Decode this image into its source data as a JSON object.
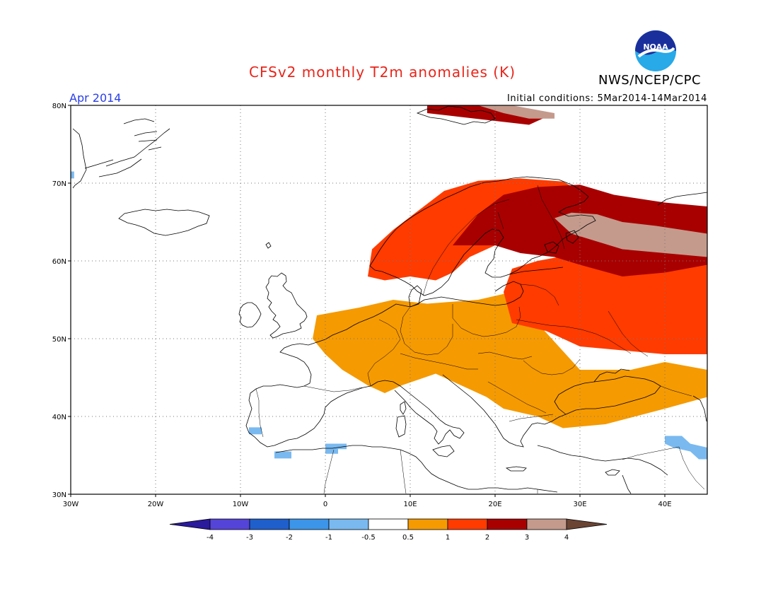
{
  "header": {
    "title": "CFSv2 monthly T2m anomalies (K)",
    "organization": "NWS/NCEP/CPC",
    "logo_text": "NOAA",
    "forecast_month": "Apr 2014",
    "initial_conditions": "Initial conditions: 5Mar2014-14Mar2014"
  },
  "colors": {
    "title": "#e8251b",
    "month": "#2a3ee8",
    "lt_neg4": "#2a1a9c",
    "neg4_neg3": "#5544d8",
    "neg3_neg2": "#1f5fcc",
    "neg2_neg1": "#3c95e8",
    "neg1_neg05": "#79b9f0",
    "neutral": "#ffffff",
    "p05_p1": "#f59a00",
    "p1_p2": "#ff3b00",
    "p2_p3": "#a80000",
    "p3_p4": "#c49a8c",
    "gt_p4": "#6b4434"
  },
  "chart_data": {
    "type": "heatmap",
    "title": "CFSv2 monthly T2m anomalies (K)",
    "subtitle_left": "Apr 2014",
    "subtitle_right": "Initial conditions: 5Mar2014-14Mar2014",
    "units": "K",
    "x_range": [
      -30,
      45
    ],
    "y_range": [
      30,
      80
    ],
    "grid": true,
    "xticks": [
      {
        "lon": -30,
        "label": "30W"
      },
      {
        "lon": -20,
        "label": "20W"
      },
      {
        "lon": -10,
        "label": "10W"
      },
      {
        "lon": 0,
        "label": "0"
      },
      {
        "lon": 10,
        "label": "10E"
      },
      {
        "lon": 20,
        "label": "20E"
      },
      {
        "lon": 30,
        "label": "30E"
      },
      {
        "lon": 40,
        "label": "40E"
      }
    ],
    "yticks": [
      {
        "lat": 30,
        "label": "30N"
      },
      {
        "lat": 40,
        "label": "40N"
      },
      {
        "lat": 50,
        "label": "50N"
      },
      {
        "lat": 60,
        "label": "60N"
      },
      {
        "lat": 70,
        "label": "70N"
      },
      {
        "lat": 80,
        "label": "80N"
      }
    ],
    "colorbar": {
      "labels": [
        "-4",
        "-3",
        "-2",
        "-1",
        "-0.5",
        "0.5",
        "1",
        "2",
        "3",
        "4"
      ],
      "bins": [
        "lt_neg4",
        "neg4_neg3",
        "neg3_neg2",
        "neg2_neg1",
        "neg1_neg05",
        "neutral",
        "p05_p1",
        "p1_p2",
        "p2_p3",
        "p3_p4",
        "gt_p4"
      ]
    },
    "regions": [
      {
        "bin": "p05_p1",
        "area": "Western & Central Europe",
        "poly": [
          [
            -1,
            53
          ],
          [
            4,
            54
          ],
          [
            8,
            55
          ],
          [
            12,
            54.5
          ],
          [
            18,
            55
          ],
          [
            22,
            56
          ],
          [
            25,
            52
          ],
          [
            30,
            46
          ],
          [
            36,
            46
          ],
          [
            40,
            47
          ],
          [
            45,
            46
          ],
          [
            45,
            42.5
          ],
          [
            40,
            41
          ],
          [
            33,
            39
          ],
          [
            28,
            38.5
          ],
          [
            25,
            40
          ],
          [
            21,
            41
          ],
          [
            19,
            42.5
          ],
          [
            16,
            44
          ],
          [
            13,
            45.5
          ],
          [
            9,
            44
          ],
          [
            7,
            43
          ],
          [
            5,
            44
          ],
          [
            2,
            46
          ],
          [
            0,
            48
          ],
          [
            -1.5,
            50
          ],
          [
            -1,
            53
          ]
        ]
      },
      {
        "bin": "p1_p2",
        "area": "Scandinavia",
        "poly": [
          [
            5,
            58
          ],
          [
            5.5,
            61.5
          ],
          [
            8,
            64
          ],
          [
            11,
            66.5
          ],
          [
            14,
            69
          ],
          [
            18,
            70.3
          ],
          [
            23,
            70.6
          ],
          [
            28,
            70.2
          ],
          [
            30,
            69
          ],
          [
            27,
            66
          ],
          [
            23,
            63
          ],
          [
            20,
            62
          ],
          [
            17,
            60.5
          ],
          [
            15,
            58.5
          ],
          [
            13,
            57.5
          ],
          [
            10,
            58
          ],
          [
            7,
            57.5
          ],
          [
            5,
            58
          ]
        ]
      },
      {
        "bin": "p1_p2",
        "area": "Eastern Europe / Western Russia",
        "poly": [
          [
            21,
            56
          ],
          [
            22,
            59
          ],
          [
            25,
            60
          ],
          [
            30,
            61
          ],
          [
            35,
            62
          ],
          [
            40,
            63
          ],
          [
            45,
            63.5
          ],
          [
            45,
            48
          ],
          [
            40,
            48
          ],
          [
            35,
            48.5
          ],
          [
            30,
            49
          ],
          [
            26,
            51
          ],
          [
            22,
            52
          ],
          [
            21,
            56
          ]
        ]
      },
      {
        "bin": "p2_p3",
        "area": "Northern Fennoscandia & NW Russia",
        "poly": [
          [
            15,
            62
          ],
          [
            18,
            66
          ],
          [
            21,
            68.5
          ],
          [
            25,
            69.5
          ],
          [
            30,
            69.8
          ],
          [
            34,
            68.5
          ],
          [
            40,
            67.5
          ],
          [
            45,
            67
          ],
          [
            45,
            59.5
          ],
          [
            40,
            58.5
          ],
          [
            35,
            58
          ],
          [
            30,
            59.5
          ],
          [
            27,
            60.5
          ],
          [
            23,
            61
          ],
          [
            20,
            62
          ],
          [
            15,
            62
          ]
        ]
      },
      {
        "bin": "p3_p4",
        "area": "Kola / White Sea",
        "poly": [
          [
            27,
            65.5
          ],
          [
            29,
            66.2
          ],
          [
            32,
            66
          ],
          [
            35,
            65
          ],
          [
            39,
            64.5
          ],
          [
            45,
            63.5
          ],
          [
            45,
            60.5
          ],
          [
            40,
            61
          ],
          [
            35,
            61.5
          ],
          [
            32,
            62.5
          ],
          [
            29,
            63.5
          ],
          [
            27,
            65.5
          ]
        ]
      },
      {
        "bin": "p2_p3",
        "area": "Svalbard",
        "poly": [
          [
            12,
            80
          ],
          [
            18,
            80
          ],
          [
            22,
            80
          ],
          [
            26,
            78.5
          ],
          [
            24,
            77.5
          ],
          [
            20,
            78
          ],
          [
            16,
            78.5
          ],
          [
            12,
            79
          ],
          [
            12,
            80
          ]
        ]
      },
      {
        "bin": "p3_p4",
        "area": "Svalbard East",
        "poly": [
          [
            18,
            80
          ],
          [
            22,
            80
          ],
          [
            27,
            79
          ],
          [
            27,
            78.3
          ],
          [
            24,
            78.3
          ],
          [
            21,
            79
          ],
          [
            18,
            80
          ]
        ]
      },
      {
        "bin": "neg1_neg05",
        "area": "Southern Portugal",
        "poly": [
          [
            -9,
            38.6
          ],
          [
            -7.5,
            38.6
          ],
          [
            -7.5,
            37.7
          ],
          [
            -9,
            37.7
          ]
        ]
      },
      {
        "bin": "neg1_neg05",
        "area": "Morocco",
        "poly": [
          [
            -6,
            35.5
          ],
          [
            -4,
            35.5
          ],
          [
            -4,
            34.6
          ],
          [
            -6,
            34.6
          ]
        ]
      },
      {
        "bin": "neg1_neg05",
        "area": "Algeria",
        "poly": [
          [
            0,
            36.5
          ],
          [
            2.5,
            36.5
          ],
          [
            2.5,
            35.8
          ],
          [
            1.5,
            35.8
          ],
          [
            1.5,
            35.2
          ],
          [
            0,
            35.2
          ]
        ]
      },
      {
        "bin": "neg1_neg05",
        "area": "Middle East",
        "poly": [
          [
            40,
            37.5
          ],
          [
            42,
            37.5
          ],
          [
            43,
            36.5
          ],
          [
            45,
            36
          ],
          [
            45,
            34.5
          ],
          [
            44,
            34.5
          ],
          [
            43,
            35.5
          ],
          [
            41,
            36
          ],
          [
            40,
            36.5
          ]
        ]
      },
      {
        "bin": "neg1_neg05",
        "area": "Greenland edge",
        "poly": [
          [
            -30,
            71.5
          ],
          [
            -29.6,
            71.5
          ],
          [
            -29.6,
            70.6
          ],
          [
            -30,
            70.6
          ]
        ]
      }
    ]
  }
}
